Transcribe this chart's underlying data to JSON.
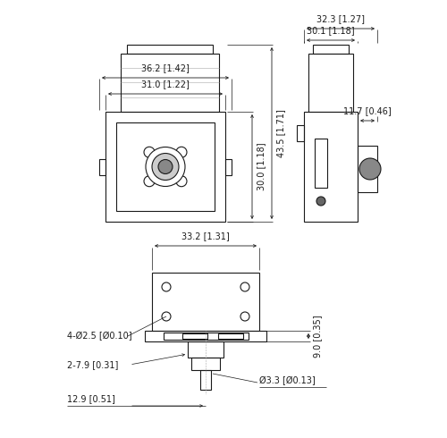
{
  "bg_color": "#ffffff",
  "lc": "#1a1a1a",
  "fs": 7.0,
  "lw": 0.8,
  "tl": {
    "dim_36": "36.2 [1.42]",
    "dim_31": "31.0 [1.22]",
    "dim_30": "30.0 [1.18]",
    "dim_43": "43.5 [1.71]"
  },
  "tr": {
    "dim_32": "32.3 [1.27]",
    "dim_30": "30.1 [1.18]",
    "dim_11": "11.7 [0.46]"
  },
  "bv": {
    "dim_33": "33.2 [1.31]",
    "dim_9": "9.0 [0.35]",
    "dim_holes": "4-Ø2.5 [Ø0.10]",
    "dim_79": "2-7.9 [0.31]",
    "dim_129": "12.9 [0.51]",
    "dim_33d": "Ø3.3 [Ø0.13]"
  }
}
